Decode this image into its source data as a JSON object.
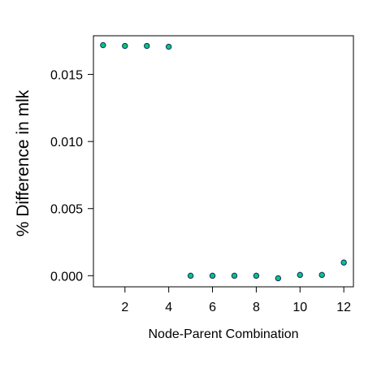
{
  "chart_data": {
    "type": "scatter",
    "title": "",
    "xlabel": "Node-Parent Combination",
    "ylabel": "% Difference in mlk",
    "xlim": [
      0.56,
      12.44
    ],
    "ylim": [
      -0.000828,
      0.01788
    ],
    "x_ticks": [
      2,
      4,
      6,
      8,
      10,
      12
    ],
    "x_tick_labels": [
      "2",
      "4",
      "6",
      "8",
      "10",
      "12"
    ],
    "y_ticks": [
      0.0,
      0.005,
      0.01,
      0.015
    ],
    "y_tick_labels": [
      "0.000",
      "0.005",
      "0.010",
      "0.015"
    ],
    "grid": false,
    "legend": "none",
    "marker": {
      "fill": "#00CC66",
      "stroke": "#1A237E"
    },
    "points": [
      {
        "x": 1,
        "y": 0.01718
      },
      {
        "x": 2,
        "y": 0.01712
      },
      {
        "x": 3,
        "y": 0.01712
      },
      {
        "x": 4,
        "y": 0.01706
      },
      {
        "x": 5,
        "y": 0.0
      },
      {
        "x": 6,
        "y": 0.0
      },
      {
        "x": 7,
        "y": 0.0
      },
      {
        "x": 8,
        "y": 0.0
      },
      {
        "x": 9,
        "y": -0.00019
      },
      {
        "x": 10,
        "y": 6e-05
      },
      {
        "x": 11,
        "y": 6e-05
      },
      {
        "x": 12,
        "y": 0.00098
      }
    ]
  }
}
